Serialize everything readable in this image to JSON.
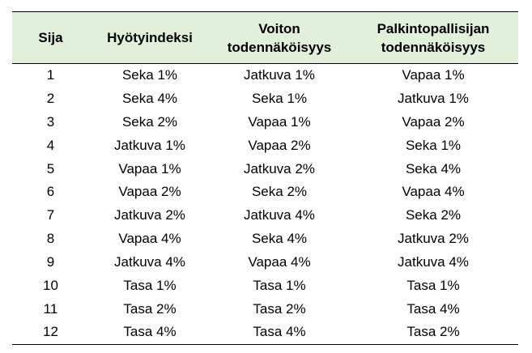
{
  "table": {
    "headers": {
      "rank": "Sija",
      "utility_index": "Hyötyindeksi",
      "win_probability_line1": "Voiton",
      "win_probability_line2": "todennäköisyys",
      "prize_probability_line1": "Palkintopallisijan",
      "prize_probability_line2": "todennäköisyys"
    },
    "rows": [
      {
        "rank": "1",
        "utility_index": "Seka 1%",
        "win_probability": "Jatkuva 1%",
        "prize_probability": "Vapaa 1%"
      },
      {
        "rank": "2",
        "utility_index": "Seka 4%",
        "win_probability": "Seka 1%",
        "prize_probability": "Jatkuva 1%"
      },
      {
        "rank": "3",
        "utility_index": "Seka 2%",
        "win_probability": "Vapaa 1%",
        "prize_probability": "Vapaa 2%"
      },
      {
        "rank": "4",
        "utility_index": "Jatkuva 1%",
        "win_probability": "Vapaa 2%",
        "prize_probability": "Seka 1%"
      },
      {
        "rank": "5",
        "utility_index": "Vapaa 1%",
        "win_probability": "Jatkuva 2%",
        "prize_probability": "Seka 4%"
      },
      {
        "rank": "6",
        "utility_index": "Vapaa 2%",
        "win_probability": "Seka 2%",
        "prize_probability": "Vapaa 4%"
      },
      {
        "rank": "7",
        "utility_index": "Jatkuva 2%",
        "win_probability": "Jatkuva 4%",
        "prize_probability": "Seka 2%"
      },
      {
        "rank": "8",
        "utility_index": "Vapaa 4%",
        "win_probability": "Seka 4%",
        "prize_probability": "Jatkuva 2%"
      },
      {
        "rank": "9",
        "utility_index": "Jatkuva 4%",
        "win_probability": "Vapaa 4%",
        "prize_probability": "Jatkuva 4%"
      },
      {
        "rank": "10",
        "utility_index": "Tasa 1%",
        "win_probability": "Tasa 1%",
        "prize_probability": "Tasa 1%"
      },
      {
        "rank": "11",
        "utility_index": "Tasa 2%",
        "win_probability": "Tasa 2%",
        "prize_probability": "Tasa 4%"
      },
      {
        "rank": "12",
        "utility_index": "Tasa 4%",
        "win_probability": "Tasa 4%",
        "prize_probability": "Tasa 2%"
      }
    ]
  },
  "colors": {
    "header_background": "#e2efda",
    "border": "#000000",
    "text": "#000000"
  }
}
